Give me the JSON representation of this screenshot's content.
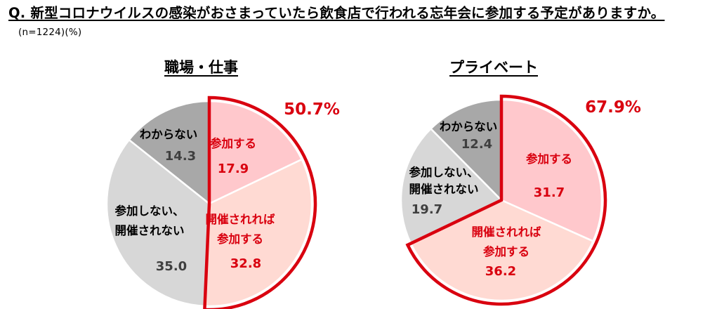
{
  "question": {
    "text": "Q. 新型コロナウイルスの感染がおさまっていたら飲食店で行われる忘年会に参加する予定がありますか。",
    "note": "(n=1224)(%)"
  },
  "chart_data": [
    {
      "type": "pie",
      "title": "職場・仕事",
      "slices": [
        {
          "label": "参加する",
          "value": 17.9,
          "color": "#ffc8cc",
          "label_color": "#d9000f",
          "value_color": "#d9000f"
        },
        {
          "label": "開催されれば参加する",
          "value": 32.8,
          "color": "#ffdad3",
          "label_color": "#d9000f",
          "value_color": "#d9000f"
        },
        {
          "label": "参加しない、開催されない",
          "value": 35.0,
          "color": "#d7d7d7",
          "label_color": "#000000",
          "value_color": "#3f3f3f"
        },
        {
          "label": "わからない",
          "value": 14.3,
          "color": "#a8a8a8",
          "label_color": "#000000",
          "value_color": "#3f3f3f"
        }
      ],
      "highlight_total": "50.7%",
      "highlight_color": "#d9000f"
    },
    {
      "type": "pie",
      "title": "プライベート",
      "slices": [
        {
          "label": "参加する",
          "value": 31.7,
          "color": "#ffc8cc",
          "label_color": "#d9000f",
          "value_color": "#d9000f"
        },
        {
          "label": "開催されれば参加する",
          "value": 36.2,
          "color": "#ffdad3",
          "label_color": "#d9000f",
          "value_color": "#d9000f"
        },
        {
          "label": "参加しない、開催されない",
          "value": 19.7,
          "color": "#d7d7d7",
          "label_color": "#000000",
          "value_color": "#3f3f3f"
        },
        {
          "label": "わからない",
          "value": 12.4,
          "color": "#a8a8a8",
          "label_color": "#000000",
          "value_color": "#3f3f3f"
        }
      ],
      "highlight_total": "67.9%",
      "highlight_color": "#d9000f"
    }
  ]
}
